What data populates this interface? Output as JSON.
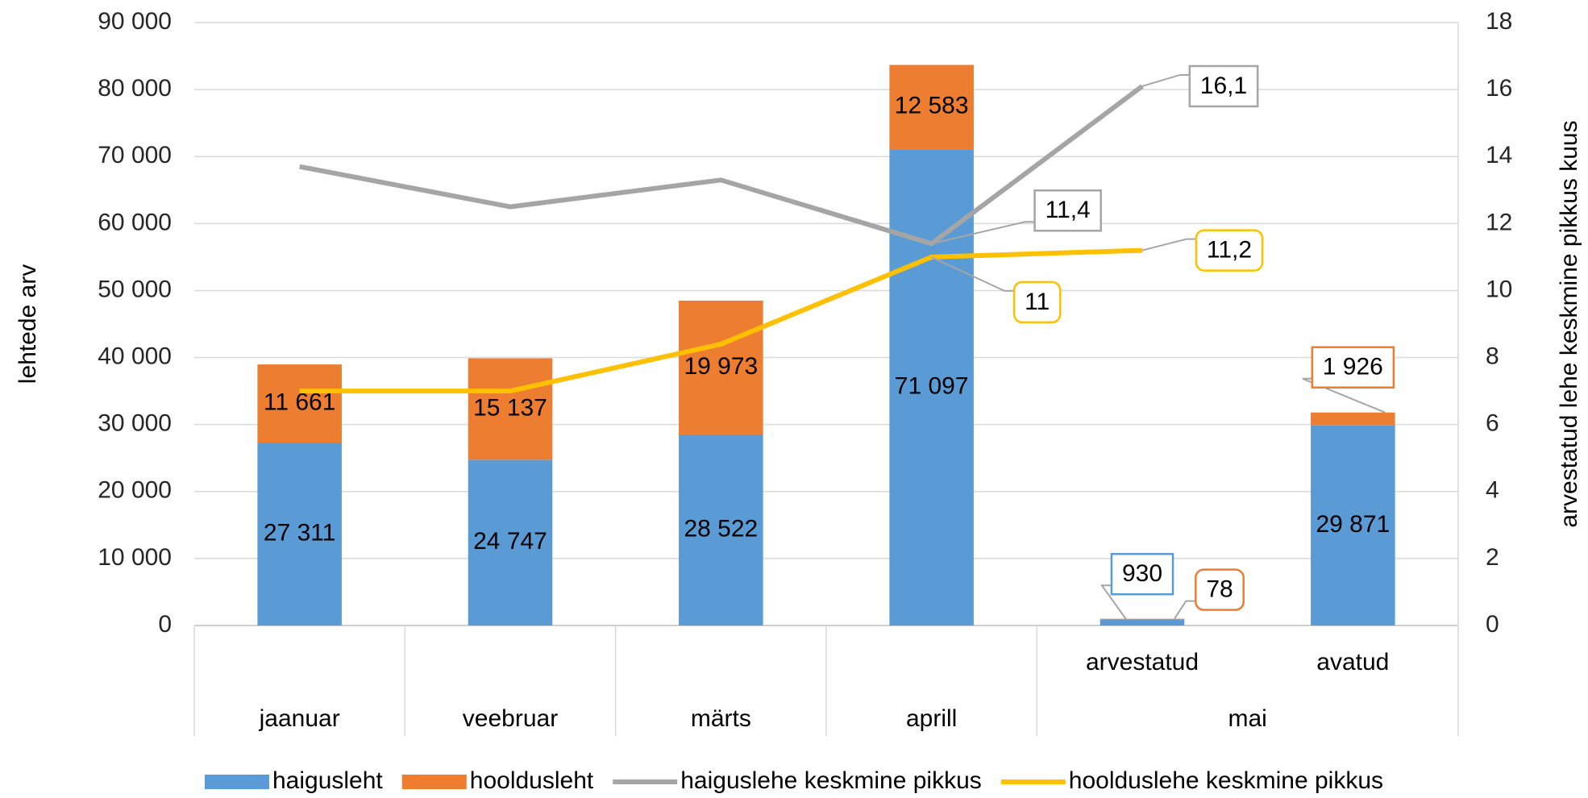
{
  "chart_data": {
    "type": "bar",
    "stacked": true,
    "categories": [
      "jaanuar",
      "veebruar",
      "märts",
      "aprill",
      "arvestatud",
      "avatud"
    ],
    "category_groups": [
      {
        "label": "mai",
        "span": [
          4,
          5
        ]
      }
    ],
    "ylabel": "lehtede arv",
    "y2label": "arvestatud lehe keskmine pikkus kuus",
    "ylim": [
      0,
      90000
    ],
    "yticks": [
      {
        "value": 0,
        "label": "0"
      },
      {
        "value": 10000,
        "label": "10 000"
      },
      {
        "value": 20000,
        "label": "20 000"
      },
      {
        "value": 30000,
        "label": "30 000"
      },
      {
        "value": 40000,
        "label": "40 000"
      },
      {
        "value": 50000,
        "label": "50 000"
      },
      {
        "value": 60000,
        "label": "60 000"
      },
      {
        "value": 70000,
        "label": "70 000"
      },
      {
        "value": 80000,
        "label": "80 000"
      },
      {
        "value": 90000,
        "label": "90 000"
      }
    ],
    "y2lim": [
      0,
      18
    ],
    "y2ticks": [
      0,
      2,
      4,
      6,
      8,
      10,
      12,
      14,
      16,
      18
    ],
    "grid": true,
    "legend": "bottom",
    "series": [
      {
        "name": "haigusleht",
        "type": "bar",
        "color": "#5b9bd5",
        "values": [
          27311,
          24747,
          28522,
          71097,
          930,
          29871
        ],
        "value_labels": [
          "27 311",
          "24 747",
          "28 522",
          "71 097",
          "930",
          "29 871"
        ]
      },
      {
        "name": "hooldusleht",
        "type": "bar",
        "color": "#ed7d31",
        "values": [
          11661,
          15137,
          19973,
          12583,
          78,
          1926
        ],
        "value_labels": [
          "11 661",
          "15 137",
          "19 973",
          "12 583",
          "78",
          "1 926"
        ]
      },
      {
        "name": "haiguslehe keskmine pikkus",
        "type": "line",
        "axis": "y2",
        "color": "#a5a5a5",
        "values": [
          13.7,
          12.5,
          13.3,
          11.4,
          16.1,
          null
        ],
        "value_labels": [
          null,
          null,
          null,
          "11,4",
          "16,1",
          null
        ]
      },
      {
        "name": "hoolduslehe keskmine pikkus",
        "type": "line",
        "axis": "y2",
        "color": "#ffc000",
        "values": [
          7.0,
          7.0,
          8.4,
          11,
          11.2,
          null
        ],
        "value_labels": [
          null,
          null,
          null,
          "11",
          "11,2",
          null
        ]
      }
    ]
  }
}
